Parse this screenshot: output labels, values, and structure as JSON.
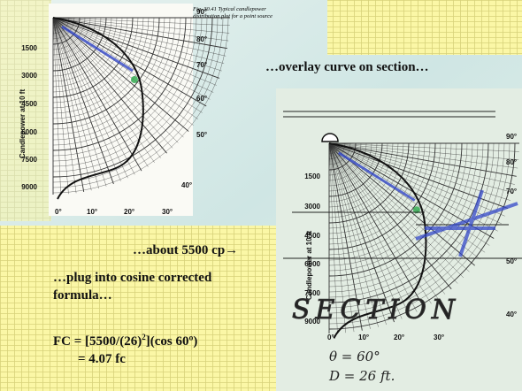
{
  "figure_caption": "Fig. 30.41  Typical candlepower distribution plot for a point source",
  "notes": {
    "overlay": "…overlay curve on section…",
    "about": "…about 5500 cp→",
    "plug": "…plug into cosine corrected formula…"
  },
  "formula": {
    "line1_start": "FC = [5500/(26)",
    "line1_exp": "2",
    "line1_end": "](cos 60º)",
    "line2": "= 4.07 fc"
  },
  "figures": [
    {
      "y_axis_label": "Candlepower at 10 ft",
      "y_labels": [
        "1500",
        "3000",
        "4500",
        "6000",
        "7500",
        "9000"
      ],
      "bottom_angles": [
        "0°",
        "10°",
        "20°",
        "30°"
      ],
      "side_angles": [
        "90°",
        "80°",
        "70°",
        "60°",
        "50°",
        "40°"
      ]
    },
    {
      "y_axis_label": "Candlepower at 10 ft",
      "y_labels": [
        "1500",
        "3000",
        "4500",
        "6000",
        "7500",
        "9000"
      ],
      "bottom_angles": [
        "0°",
        "10°",
        "20°",
        "30°"
      ],
      "side_angles": [
        "90°",
        "80°",
        "70°",
        "50°",
        "40°"
      ],
      "handwritten": {
        "section": "SECTION",
        "angle": "θ = 60°",
        "distance": "D = 26 ft."
      }
    }
  ]
}
